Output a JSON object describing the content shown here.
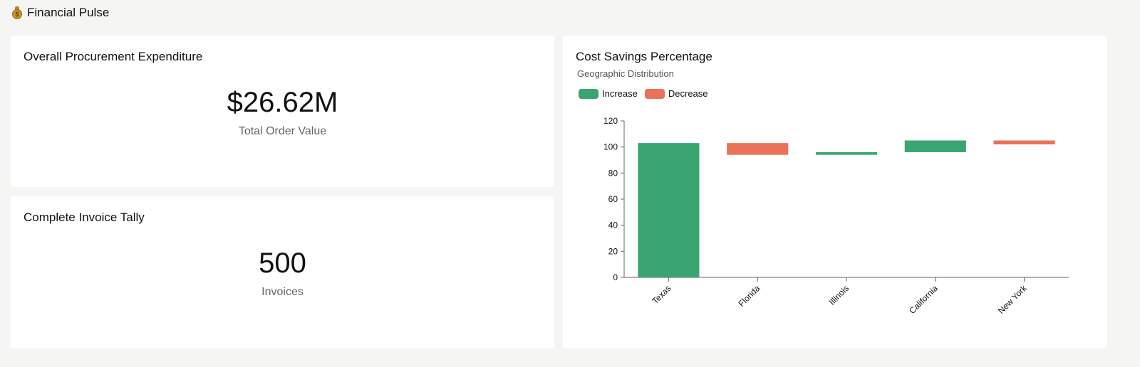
{
  "app": {
    "title": "Financial Pulse",
    "icon": "money-bag-icon"
  },
  "cards": {
    "expenditure": {
      "title": "Overall Procurement Expenditure",
      "value": "$26.62M",
      "label": "Total Order Value"
    },
    "invoices": {
      "title": "Complete Invoice Tally",
      "value": "500",
      "label": "Invoices"
    },
    "savings": {
      "title": "Cost Savings Percentage",
      "subtitle": "Geographic Distribution"
    }
  },
  "chart_data": {
    "type": "bar",
    "subtype": "waterfall",
    "title": "Cost Savings Percentage",
    "subtitle": "Geographic Distribution",
    "categories": [
      "Texas",
      "Florida",
      "Illinois",
      "California",
      "New York"
    ],
    "ranges": [
      [
        0,
        103
      ],
      [
        94,
        103
      ],
      [
        94,
        96
      ],
      [
        96,
        105
      ],
      [
        102,
        105
      ]
    ],
    "directions": [
      "increase",
      "decrease",
      "increase",
      "increase",
      "decrease"
    ],
    "legend": [
      {
        "name": "Increase",
        "color": "#3aa571"
      },
      {
        "name": "Decrease",
        "color": "#eb7157"
      }
    ],
    "yticks": [
      0,
      20,
      40,
      60,
      80,
      100,
      120
    ],
    "ylim": [
      0,
      120
    ],
    "xlabel": "",
    "ylabel": "",
    "grid": false,
    "legend_position": "top-left"
  }
}
